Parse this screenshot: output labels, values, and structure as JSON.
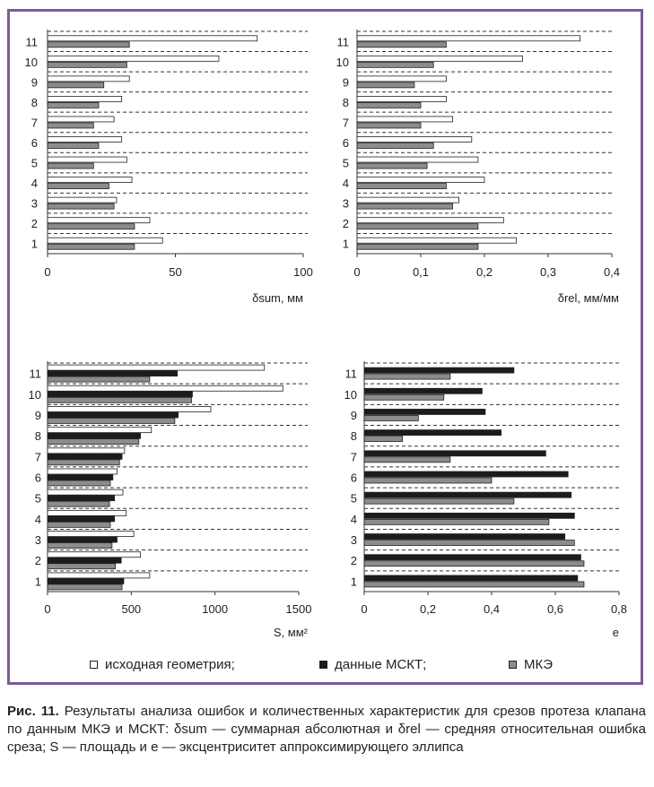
{
  "colors": {
    "frame": "#7d5a9a",
    "original_geometry": "#ffffff",
    "mskt_data": "#1c1c1c",
    "mke": "#8c8c8c"
  },
  "legend": {
    "items": [
      {
        "label": "исходная геометрия;",
        "color": "#ffffff"
      },
      {
        "label": "данные МСКТ;",
        "color": "#1c1c1c"
      },
      {
        "label": "МКЭ",
        "color": "#8c8c8c"
      }
    ]
  },
  "caption": {
    "label": "Рис. 11.",
    "text": "Результаты анализа ошибок и количественных характеристик для срезов протеза клапана по данным МКЭ и МСКТ: δsum — суммарная абсолютная и δrel — средняя относительная ошибка среза; S — площадь и e — эксцентриситет аппроксимирующего эллипса"
  },
  "chart_data": [
    {
      "type": "bar",
      "orientation": "horizontal",
      "categories": [
        "1",
        "2",
        "3",
        "4",
        "5",
        "6",
        "7",
        "8",
        "9",
        "10",
        "11"
      ],
      "xlabel": "δsum, мм",
      "xlim": [
        0,
        100
      ],
      "xticks": [
        "0",
        "50",
        "100"
      ],
      "series": [
        {
          "key": "original",
          "values": [
            45,
            40,
            27,
            33,
            31,
            29,
            26,
            29,
            32,
            67,
            82
          ]
        },
        {
          "key": "mke",
          "values": [
            34,
            34,
            26,
            24,
            18,
            20,
            18,
            20,
            22,
            31,
            32
          ]
        }
      ]
    },
    {
      "type": "bar",
      "orientation": "horizontal",
      "categories": [
        "1",
        "2",
        "3",
        "4",
        "5",
        "6",
        "7",
        "8",
        "9",
        "10",
        "11"
      ],
      "xlabel": "δrel, мм/мм",
      "xlim": [
        0,
        0.4
      ],
      "xticks": [
        "0",
        "0,1",
        "0,2",
        "0,3",
        "0,4"
      ],
      "series": [
        {
          "key": "original",
          "values": [
            0.25,
            0.23,
            0.16,
            0.2,
            0.19,
            0.18,
            0.15,
            0.14,
            0.14,
            0.26,
            0.35
          ]
        },
        {
          "key": "mke",
          "values": [
            0.19,
            0.19,
            0.15,
            0.14,
            0.11,
            0.12,
            0.1,
            0.1,
            0.09,
            0.12,
            0.14
          ]
        }
      ]
    },
    {
      "type": "bar",
      "orientation": "horizontal",
      "categories": [
        "1",
        "2",
        "3",
        "4",
        "5",
        "6",
        "7",
        "8",
        "9",
        "10",
        "11"
      ],
      "xlabel": "S, мм²",
      "xlim": [
        0,
        1500
      ],
      "xticks": [
        "0",
        "500",
        "1000",
        "1500"
      ],
      "series": [
        {
          "key": "original",
          "values": [
            610,
            555,
            515,
            470,
            450,
            415,
            460,
            620,
            975,
            1405,
            1295
          ]
        },
        {
          "key": "mskt",
          "values": [
            455,
            440,
            415,
            400,
            400,
            390,
            445,
            555,
            780,
            865,
            775
          ]
        },
        {
          "key": "mke",
          "values": [
            445,
            405,
            385,
            375,
            370,
            375,
            430,
            545,
            760,
            860,
            610
          ]
        }
      ]
    },
    {
      "type": "bar",
      "orientation": "horizontal",
      "categories": [
        "1",
        "2",
        "3",
        "4",
        "5",
        "6",
        "7",
        "8",
        "9",
        "10",
        "11"
      ],
      "xlabel": "e",
      "xlim": [
        0,
        0.8
      ],
      "xticks": [
        "0",
        "0,2",
        "0,4",
        "0,6",
        "0,8"
      ],
      "series": [
        {
          "key": "mskt",
          "values": [
            0.67,
            0.68,
            0.63,
            0.66,
            0.65,
            0.64,
            0.57,
            0.43,
            0.38,
            0.37,
            0.47
          ]
        },
        {
          "key": "mke",
          "values": [
            0.69,
            0.69,
            0.66,
            0.58,
            0.47,
            0.4,
            0.27,
            0.12,
            0.17,
            0.25,
            0.27
          ]
        }
      ]
    }
  ]
}
